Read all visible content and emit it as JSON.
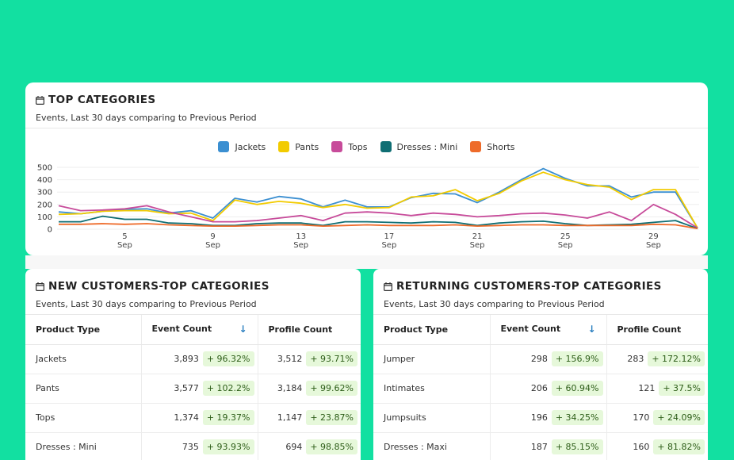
{
  "top": {
    "title": "TOP CATEGORIES",
    "subtitle": "Events, Last 30 days comparing to Previous Period"
  },
  "new_customers": {
    "title": "NEW CUSTOMERS-TOP CATEGORIES",
    "subtitle": "Events, Last 30 days comparing to Previous Period",
    "headers": [
      "Product Type",
      "Event Count",
      "Profile Count"
    ],
    "rows": [
      {
        "type": "Jackets",
        "events": "3,893",
        "events_chg": "+ 96.32%",
        "profiles": "3,512",
        "profiles_chg": "+ 93.71%"
      },
      {
        "type": "Pants",
        "events": "3,577",
        "events_chg": "+ 102.2%",
        "profiles": "3,184",
        "profiles_chg": "+ 99.62%"
      },
      {
        "type": "Tops",
        "events": "1,374",
        "events_chg": "+ 19.37%",
        "profiles": "1,147",
        "profiles_chg": "+ 23.87%"
      },
      {
        "type": "Dresses : Mini",
        "events": "735",
        "events_chg": "+ 93.93%",
        "profiles": "694",
        "profiles_chg": "+ 98.85%"
      }
    ]
  },
  "returning_customers": {
    "title": "RETURNING CUSTOMERS-TOP CATEGORIES",
    "subtitle": "Events, Last 30 days comparing to Previous Period",
    "headers": [
      "Product Type",
      "Event Count",
      "Profile Count"
    ],
    "rows": [
      {
        "type": "Jumper",
        "events": "298",
        "events_chg": "+ 156.9%",
        "profiles": "283",
        "profiles_chg": "+ 172.12%"
      },
      {
        "type": "Intimates",
        "events": "206",
        "events_chg": "+ 60.94%",
        "profiles": "121",
        "profiles_chg": "+ 37.5%"
      },
      {
        "type": "Jumpsuits",
        "events": "196",
        "events_chg": "+ 34.25%",
        "profiles": "170",
        "profiles_chg": "+ 24.09%"
      },
      {
        "type": "Dresses : Maxi",
        "events": "187",
        "events_chg": "+ 85.15%",
        "profiles": "160",
        "profiles_chg": "+ 81.82%"
      }
    ]
  },
  "icons": {
    "calendar": "calendar-icon",
    "sort": "sort-down-arrow-icon"
  },
  "colors": {
    "background": "#12e0a1",
    "positive_badge": "#e6f8da"
  },
  "chart_data": {
    "type": "line",
    "title": "TOP CATEGORIES",
    "y_ticks": [
      "500",
      "400",
      "300",
      "200",
      "100",
      "0"
    ],
    "ylim": [
      0,
      500
    ],
    "x_tick_labels": [
      {
        "day": 5,
        "top": "5",
        "bottom": "Sep"
      },
      {
        "day": 9,
        "top": "9",
        "bottom": "Sep"
      },
      {
        "day": 13,
        "top": "13",
        "bottom": "Sep"
      },
      {
        "day": 17,
        "top": "17",
        "bottom": "Sep"
      },
      {
        "day": 21,
        "top": "21",
        "bottom": "Sep"
      },
      {
        "day": 25,
        "top": "25",
        "bottom": "Sep"
      },
      {
        "day": 29,
        "top": "29",
        "bottom": "Sep"
      }
    ],
    "x": [
      2,
      3,
      4,
      5,
      6,
      7,
      8,
      9,
      10,
      11,
      12,
      13,
      14,
      15,
      16,
      17,
      18,
      19,
      20,
      21,
      22,
      23,
      24,
      25,
      26,
      27,
      28,
      29,
      30,
      31
    ],
    "series": [
      {
        "name": "Jackets",
        "color": "#3b8fd1",
        "values": [
          140,
          125,
          145,
          160,
          165,
          130,
          150,
          90,
          250,
          220,
          265,
          245,
          180,
          235,
          180,
          180,
          255,
          290,
          285,
          215,
          300,
          400,
          490,
          410,
          350,
          350,
          260,
          300,
          300,
          10
        ]
      },
      {
        "name": "Pants",
        "color": "#f2cb00",
        "values": [
          120,
          125,
          145,
          150,
          150,
          125,
          130,
          70,
          235,
          200,
          225,
          210,
          175,
          200,
          170,
          175,
          260,
          270,
          320,
          230,
          290,
          390,
          460,
          400,
          360,
          340,
          240,
          320,
          320,
          10
        ]
      },
      {
        "name": "Tops",
        "color": "#c74b9a",
        "values": [
          190,
          150,
          155,
          165,
          190,
          140,
          100,
          60,
          60,
          70,
          90,
          110,
          70,
          130,
          140,
          130,
          110,
          130,
          120,
          100,
          110,
          125,
          130,
          115,
          90,
          140,
          70,
          200,
          120,
          10
        ]
      },
      {
        "name": "Dresses : Mini",
        "color": "#0f6e73",
        "values": [
          60,
          60,
          105,
          80,
          80,
          50,
          45,
          30,
          30,
          45,
          50,
          50,
          30,
          60,
          60,
          55,
          50,
          60,
          55,
          30,
          50,
          60,
          65,
          45,
          30,
          35,
          40,
          55,
          70,
          5
        ]
      },
      {
        "name": "Shorts",
        "color": "#ee6b2a",
        "values": [
          40,
          40,
          45,
          40,
          45,
          35,
          30,
          25,
          25,
          30,
          35,
          35,
          25,
          30,
          35,
          30,
          30,
          30,
          35,
          25,
          30,
          35,
          35,
          30,
          30,
          30,
          30,
          40,
          35,
          5
        ]
      }
    ]
  }
}
